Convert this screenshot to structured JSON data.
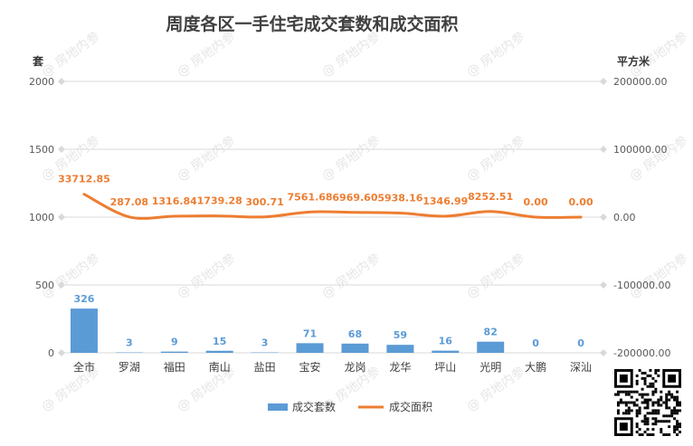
{
  "chart_data": {
    "type": "bar+line",
    "title": "周度各区一手住宅成交套数和成交面积",
    "left_axis_unit": "套",
    "right_axis_unit": "平方米",
    "left_ticks": [
      "2000",
      "1500",
      "1000",
      "500",
      "0"
    ],
    "right_ticks": [
      "200000.00",
      "100000.00",
      "0.00",
      "-100000.00",
      "-200000.00"
    ],
    "left_range": [
      0,
      2000
    ],
    "right_range": [
      -200000,
      200000
    ],
    "categories": [
      "全市",
      "罗湖",
      "福田",
      "南山",
      "盐田",
      "宝安",
      "龙岗",
      "龙华",
      "坪山",
      "光明",
      "大鹏",
      "深汕"
    ],
    "series": [
      {
        "name": "成交套数",
        "kind": "bar",
        "axis": "left",
        "color": "#5b9bd5",
        "values": [
          326,
          3,
          9,
          15,
          3,
          71,
          68,
          59,
          16,
          82,
          0,
          0
        ],
        "labels": [
          "326",
          "3",
          "9",
          "15",
          "3",
          "71",
          "68",
          "59",
          "16",
          "82",
          "0",
          "0"
        ]
      },
      {
        "name": "成交面积",
        "kind": "line",
        "axis": "right",
        "color": "#ed7d31",
        "values": [
          33712.85,
          287.08,
          1316.84,
          1739.28,
          300.71,
          7561.68,
          6969.6,
          5938.16,
          1346.99,
          8252.51,
          0.0,
          0.0
        ],
        "labels": [
          "33712.85",
          "287.08",
          "1316.84",
          "1739.28",
          "300.71",
          "7561.68",
          "6969.60",
          "5938.16",
          "1346.99",
          "8252.51",
          "0.00",
          "0.00"
        ]
      }
    ],
    "grid": true,
    "legend_position": "bottom",
    "watermark": "@ 房地内参"
  }
}
